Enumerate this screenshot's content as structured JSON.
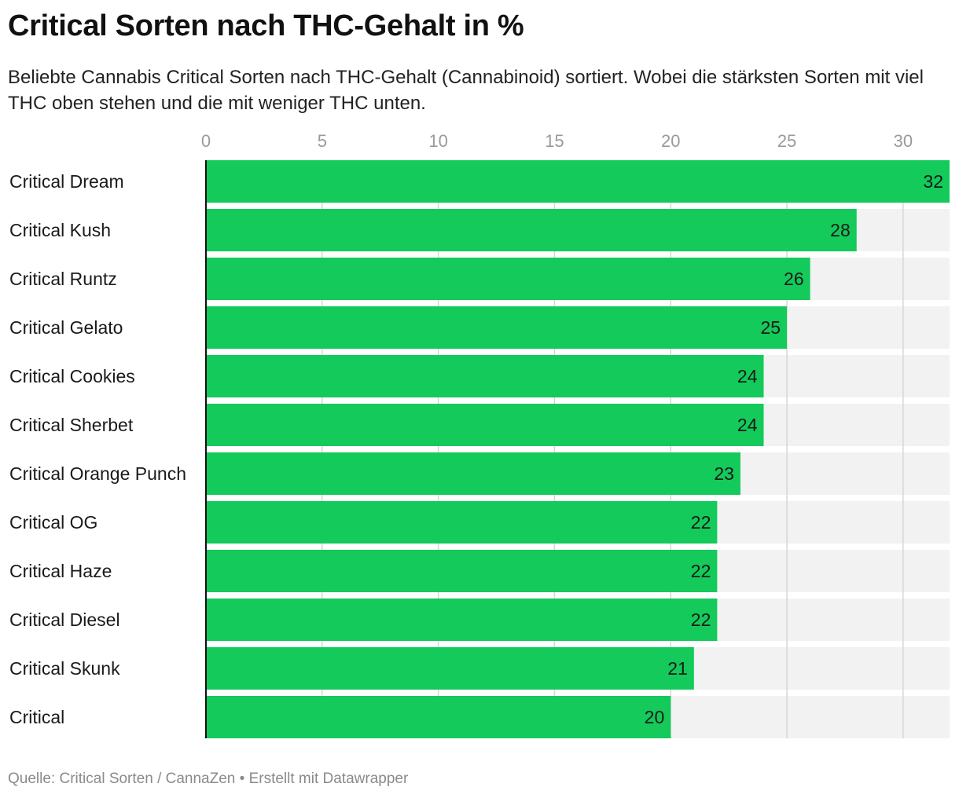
{
  "header": {
    "title": "Critical Sorten nach THC-Gehalt in %",
    "subtitle": "Beliebte Cannabis Critical Sorten nach THC-Gehalt (Cannabinoid) sortiert. Wobei die stärksten Sorten mit viel THC oben stehen und die mit weniger THC unten."
  },
  "footer": {
    "source": "Quelle: Critical Sorten / CannaZen • Erstellt mit Datawrapper"
  },
  "colors": {
    "bar": "#13ca5a",
    "track": "#f2f2f2",
    "grid": "#d6d6d6",
    "tick_label": "#9a9a9a",
    "axis": "#111111"
  },
  "chart_data": {
    "type": "bar",
    "orientation": "horizontal",
    "categories": [
      "Critical Dream",
      "Critical Kush",
      "Critical Runtz",
      "Critical Gelato",
      "Critical Cookies",
      "Critical Sherbet",
      "Critical Orange Punch",
      "Critical OG",
      "Critical Haze",
      "Critical Diesel",
      "Critical Skunk",
      "Critical"
    ],
    "values": [
      32,
      28,
      26,
      25,
      24,
      24,
      23,
      22,
      22,
      22,
      21,
      20
    ],
    "xlim": [
      0,
      32
    ],
    "xticks": [
      0,
      5,
      10,
      15,
      20,
      25,
      30
    ],
    "tick_position": "top",
    "grid": true,
    "data_labels": true
  }
}
